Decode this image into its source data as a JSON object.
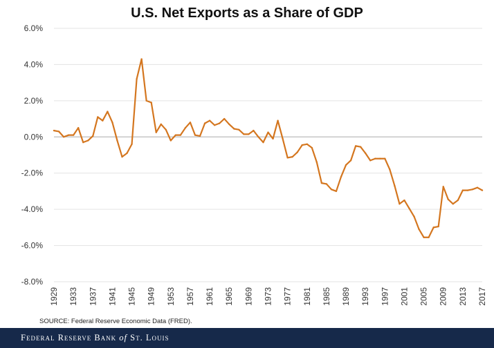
{
  "title": "U.S. Net Exports as a Share of GDP",
  "source": "SOURCE: Federal Reserve Economic Data (FRED).",
  "footer": {
    "part1": "Federal Reserve Bank ",
    "part2": "of",
    "part3": " St. Louis"
  },
  "colors": {
    "line": "#d4761f",
    "footer_bg": "#16294a",
    "grid": "#e3e3e3"
  },
  "chart_data": {
    "type": "line",
    "title": "U.S. Net Exports as a Share of GDP",
    "xlabel": "",
    "ylabel": "",
    "ylim": [
      -8.0,
      6.0
    ],
    "xlim": [
      1929,
      2017
    ],
    "grid": true,
    "y_ticks": [
      "6.0%",
      "4.0%",
      "2.0%",
      "0.0%",
      "-2.0%",
      "-4.0%",
      "-6.0%",
      "-8.0%"
    ],
    "x_ticks": [
      "1929",
      "1933",
      "1937",
      "1941",
      "1945",
      "1949",
      "1953",
      "1957",
      "1961",
      "1965",
      "1969",
      "1973",
      "1977",
      "1981",
      "1985",
      "1989",
      "1993",
      "1997",
      "2001",
      "2005",
      "2009",
      "2013",
      "2017"
    ],
    "series": [
      {
        "x": [
          1929,
          1930,
          1931,
          1932,
          1933,
          1934,
          1935,
          1936,
          1937,
          1938,
          1939,
          1940,
          1941,
          1942,
          1943,
          1944,
          1945,
          1946,
          1947,
          1948,
          1949,
          1950,
          1951,
          1952,
          1953,
          1954,
          1955,
          1956,
          1957,
          1958,
          1959,
          1960,
          1961,
          1962,
          1963,
          1964,
          1965,
          1966,
          1967,
          1968,
          1969,
          1970,
          1971,
          1972,
          1973,
          1974,
          1975,
          1976,
          1977,
          1978,
          1979,
          1980,
          1981,
          1982,
          1983,
          1984,
          1985,
          1986,
          1987,
          1988,
          1989,
          1990,
          1991,
          1992,
          1993,
          1994,
          1995,
          1996,
          1997,
          1998,
          1999,
          2000,
          2001,
          2002,
          2003,
          2004,
          2005,
          2006,
          2007,
          2008,
          2009,
          2010,
          2011,
          2012,
          2013,
          2014,
          2015,
          2016,
          2017
        ],
        "values": [
          0.35,
          0.3,
          0.0,
          0.1,
          0.1,
          0.5,
          -0.3,
          -0.2,
          0.05,
          1.1,
          0.9,
          1.4,
          0.8,
          -0.2,
          -1.1,
          -0.9,
          -0.4,
          3.2,
          4.3,
          2.0,
          1.9,
          0.25,
          0.7,
          0.4,
          -0.2,
          0.1,
          0.1,
          0.5,
          0.8,
          0.1,
          0.05,
          0.75,
          0.9,
          0.65,
          0.75,
          1.0,
          0.7,
          0.45,
          0.4,
          0.15,
          0.15,
          0.35,
          0.0,
          -0.3,
          0.25,
          -0.1,
          0.9,
          -0.1,
          -1.15,
          -1.1,
          -0.85,
          -0.45,
          -0.4,
          -0.6,
          -1.4,
          -2.55,
          -2.6,
          -2.9,
          -3.0,
          -2.2,
          -1.55,
          -1.3,
          -0.5,
          -0.55,
          -0.9,
          -1.3,
          -1.2,
          -1.2,
          -1.2,
          -1.8,
          -2.7,
          -3.7,
          -3.5,
          -3.95,
          -4.4,
          -5.1,
          -5.55,
          -5.55,
          -5.0,
          -4.95,
          -2.75,
          -3.45,
          -3.7,
          -3.5,
          -2.95,
          -2.95,
          -2.9,
          -2.8,
          -2.95
        ]
      }
    ]
  }
}
